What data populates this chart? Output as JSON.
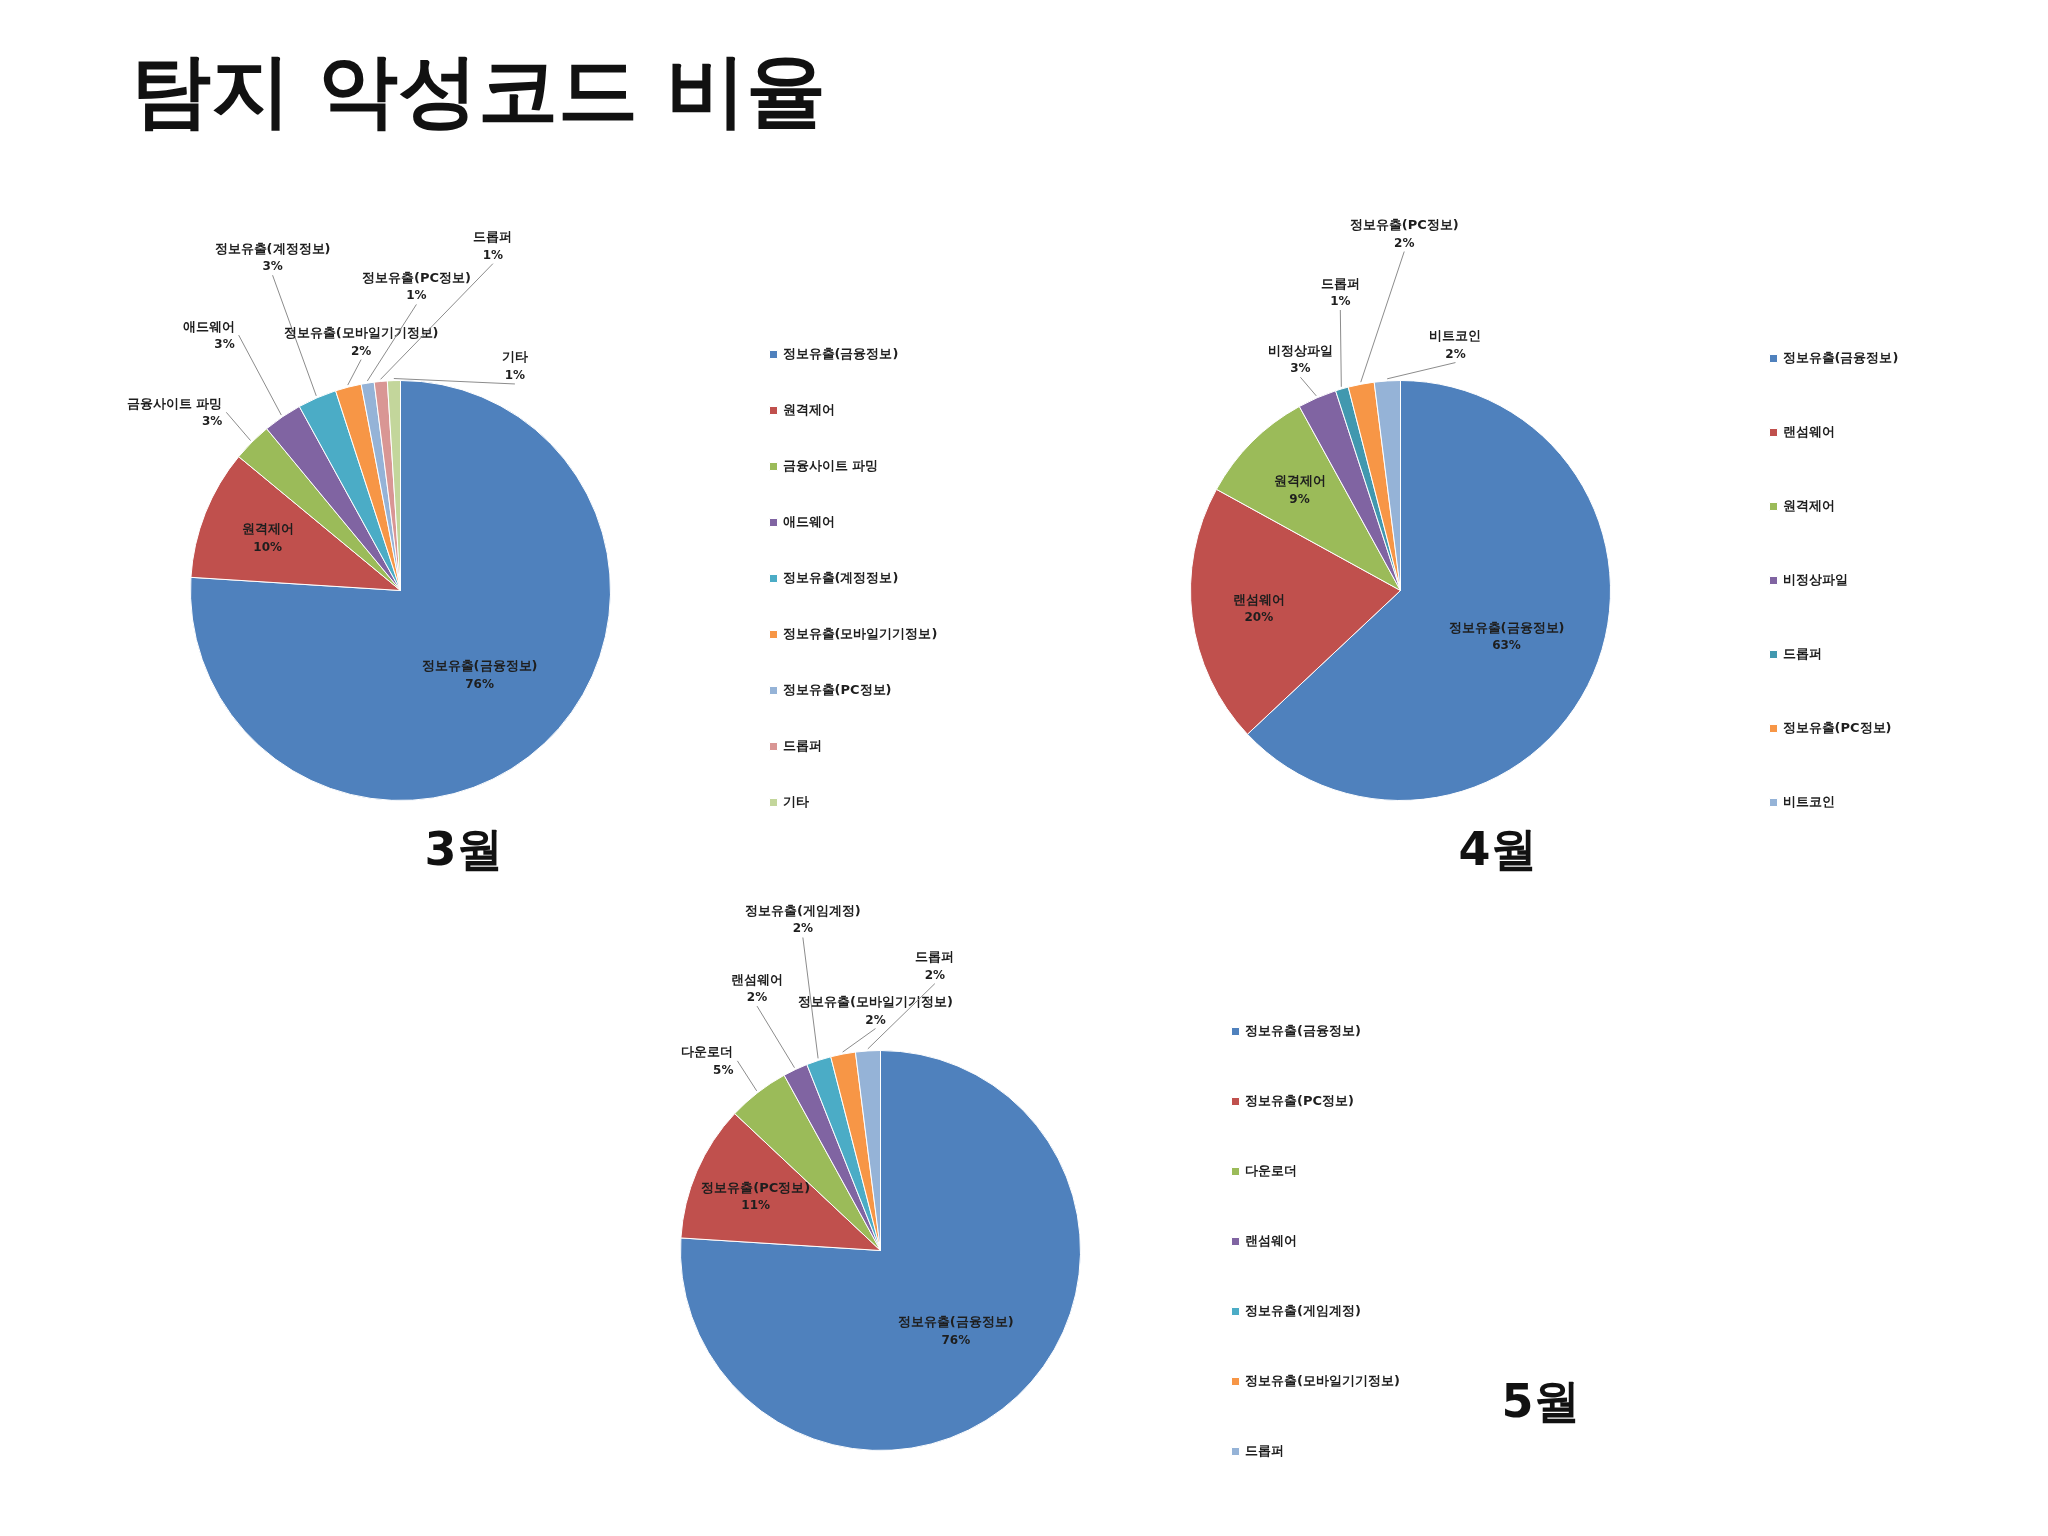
{
  "chart_data": [
    {
      "type": "pie",
      "title": "3월",
      "annotations": [
        "탐지 악성코드 비율"
      ],
      "categories": [
        "정보유출(금융정보)",
        "원격제어",
        "금융사이트 파밍",
        "애드웨어",
        "정보유출(계정정보)",
        "정보유출(모바일기기정보)",
        "정보유출(PC정보)",
        "드롭퍼",
        "기타"
      ],
      "values": [
        76,
        10,
        3,
        3,
        3,
        2,
        1,
        1,
        1
      ],
      "value_labels": [
        "76%",
        "10%",
        "3%",
        "3%",
        "3%",
        "2%",
        "1%",
        "1%",
        "1%"
      ],
      "colors": [
        "#4f81bd",
        "#c0504d",
        "#9bbb59",
        "#8064a2",
        "#4bacc6",
        "#f79646",
        "#95b3d7",
        "#d99694",
        "#c3d69b"
      ],
      "legend": "right"
    },
    {
      "type": "pie",
      "title": "4월",
      "categories": [
        "정보유출(금융정보)",
        "랜섬웨어",
        "원격제어",
        "비정상파일",
        "드롭퍼",
        "정보유출(PC정보)",
        "비트코인"
      ],
      "values": [
        63,
        20,
        9,
        3,
        1,
        2,
        2
      ],
      "value_labels": [
        "63%",
        "20%",
        "9%",
        "3%",
        "1%",
        "2%",
        "2%"
      ],
      "colors": [
        "#4f81bd",
        "#c0504d",
        "#9bbb59",
        "#8064a2",
        "#4198af",
        "#f79646",
        "#95b3d7"
      ],
      "legend": "right"
    },
    {
      "type": "pie",
      "title": "5월",
      "categories": [
        "정보유출(금융정보)",
        "정보유출(PC정보)",
        "다운로더",
        "랜섬웨어",
        "정보유출(게임계정)",
        "정보유출(모바일기기정보)",
        "드롭퍼"
      ],
      "values": [
        76,
        11,
        5,
        2,
        2,
        2,
        2
      ],
      "value_labels": [
        "76%",
        "11%",
        "5%",
        "2%",
        "2%",
        "2%",
        "2%"
      ],
      "colors": [
        "#4f81bd",
        "#c0504d",
        "#9bbb59",
        "#8064a2",
        "#4bacc6",
        "#f79646",
        "#95b3d7"
      ],
      "legend": "right"
    }
  ]
}
